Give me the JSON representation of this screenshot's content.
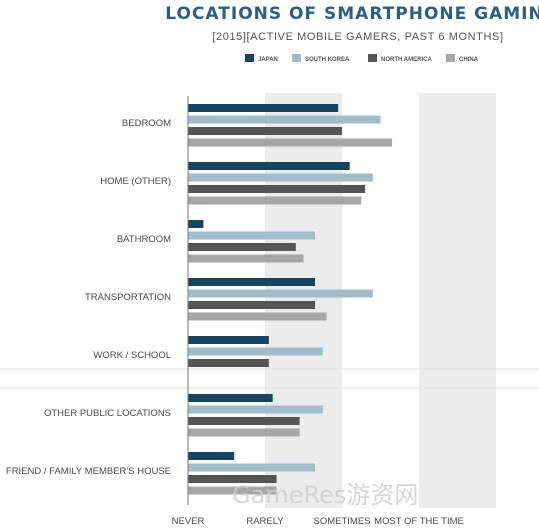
{
  "chart_data": {
    "type": "bar",
    "orientation": "horizontal",
    "title": "LOCATIONS OF SMARTPHONE GAMING",
    "subtitle": "[2015][ACTIVE MOBILE GAMERS, PAST 6 MONTHS]",
    "categories": [
      "BEDROOM",
      "HOME (OTHER)",
      "BATHROOM",
      "TRANSPORTATION",
      "WORK / SCHOOL",
      "OTHER PUBLIC LOCATIONS",
      "FRIEND / FAMILY MEMBER'S HOUSE"
    ],
    "series": [
      {
        "name": "JAPAN",
        "color": "#17445f",
        "values": [
          1.95,
          2.1,
          0.2,
          1.65,
          1.05,
          1.1,
          0.6
        ]
      },
      {
        "name": "SOUTH KOREA",
        "color": "#a2bccc",
        "values": [
          2.5,
          2.4,
          1.65,
          2.4,
          1.75,
          1.75,
          1.65
        ]
      },
      {
        "name": "NORTH AMERICA",
        "color": "#555555",
        "values": [
          2.0,
          2.3,
          1.4,
          1.65,
          1.05,
          1.45,
          1.15
        ]
      },
      {
        "name": "CHINA",
        "color": "#a6a6a6",
        "values": [
          2.65,
          2.25,
          1.5,
          1.8,
          null,
          1.45,
          1.15
        ]
      }
    ],
    "x_ticks": [
      "NEVER",
      "RARELY",
      "SOMETIMES",
      "MOST OF THE TIME"
    ],
    "xlim": [
      0,
      4
    ],
    "legend": "top",
    "grid": "alternating bands"
  },
  "watermark": "GameRes游资网"
}
